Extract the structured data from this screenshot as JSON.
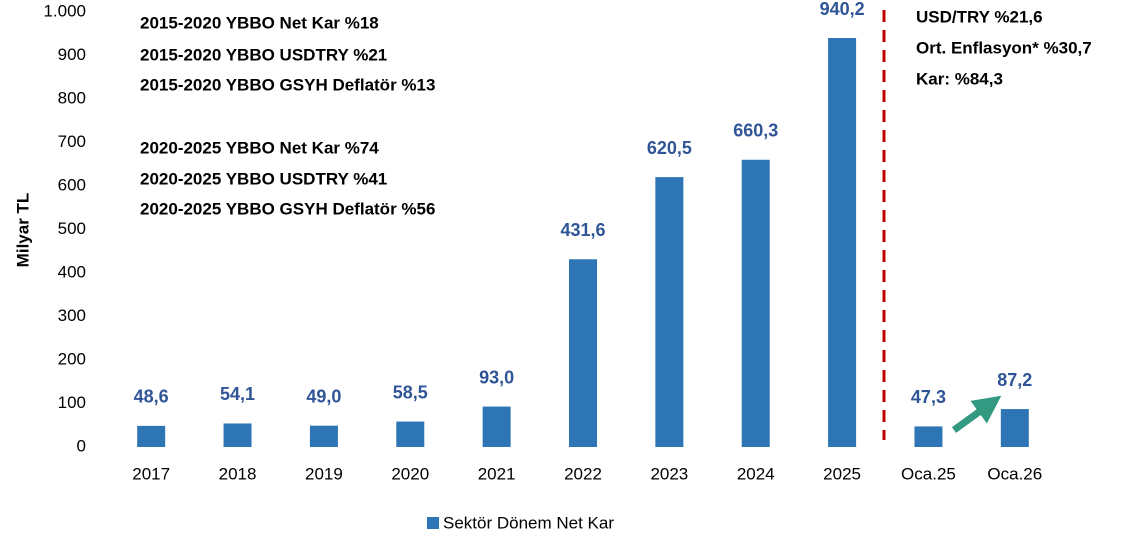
{
  "chart_data": {
    "type": "bar",
    "categories": [
      "2017",
      "2018",
      "2019",
      "2020",
      "2021",
      "2022",
      "2023",
      "2024",
      "2025",
      "Oca.25",
      "Oca.26"
    ],
    "series": [
      {
        "name": "Sektör Dönem Net Kar",
        "color": "#2e75b6",
        "values": [
          48.6,
          54.1,
          49.0,
          58.5,
          93.0,
          431.6,
          620.5,
          660.3,
          940.2,
          47.3,
          87.2
        ],
        "value_labels": [
          "48,6",
          "54,1",
          "49,0",
          "58,5",
          "93,0",
          "431,6",
          "620,5",
          "660,3",
          "940,2",
          "47,3",
          "87,2"
        ]
      }
    ],
    "ylabel": "Milyar TL",
    "ylim": [
      0,
      1000
    ],
    "yticks": [
      0,
      100,
      200,
      300,
      400,
      500,
      600,
      700,
      800,
      900,
      {
        "value": 1000,
        "label": "1.000"
      }
    ],
    "annotations": [
      {
        "text": "2015-2020 YBBO Net Kar %18",
        "color": "#339980"
      },
      {
        "text": "2015-2020 YBBO USDTRY %21",
        "color": "#339980"
      },
      {
        "text": "2015-2020 YBBO GSYH Deflatör %13",
        "color": "#339980"
      },
      {
        "text": "2020-2025 YBBO Net Kar %74",
        "color": "#c00000"
      },
      {
        "text": "2020-2025 YBBO USDTRY %41",
        "color": "#c00000"
      },
      {
        "text": "2020-2025 YBBO GSYH Deflatör %56",
        "color": "#c00000"
      },
      {
        "text": "USD/TRY %21,6",
        "color": "#339980"
      },
      {
        "text": "Ort. Enflasyon* %30,7",
        "color": "#339980"
      },
      {
        "text": "Kar: %84,3",
        "color": "#339980"
      }
    ],
    "legend": "bottom"
  }
}
